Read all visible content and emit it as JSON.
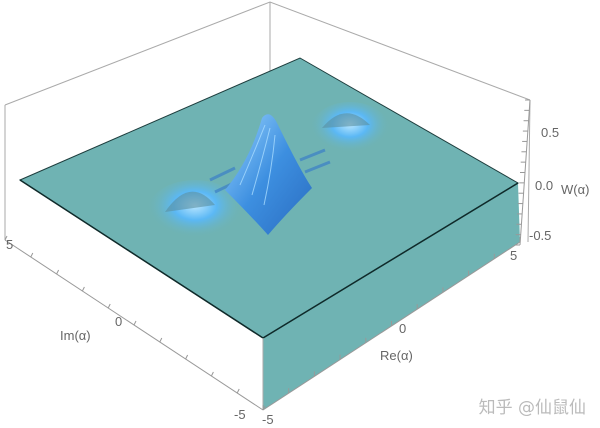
{
  "chart_data": {
    "type": "surface3d",
    "x_axis": {
      "label": "Re(α)",
      "range": [
        -5,
        5
      ],
      "ticks": [
        "-5",
        "0",
        "5"
      ]
    },
    "y_axis": {
      "label": "Im(α)",
      "range": [
        -5,
        5
      ],
      "ticks": [
        "-5",
        "0",
        "5"
      ]
    },
    "z_axis": {
      "label": "W(α)",
      "range": [
        -0.5,
        0.5
      ],
      "ticks": [
        "-0.5",
        "0.0",
        "0.5"
      ]
    },
    "features": [
      {
        "kind": "central interference peak with fringes",
        "re": 0,
        "im": 0,
        "max_w": 0.6
      },
      {
        "kind": "gaussian bump",
        "re": -3,
        "im": -1.5
      },
      {
        "kind": "gaussian bump",
        "re": 3,
        "im": 1.5
      }
    ],
    "colors": {
      "plane": "#6fb3b3",
      "surface": "#4aa0e8",
      "box": "#999999"
    }
  },
  "watermark": "知乎 @仙鼠仙"
}
